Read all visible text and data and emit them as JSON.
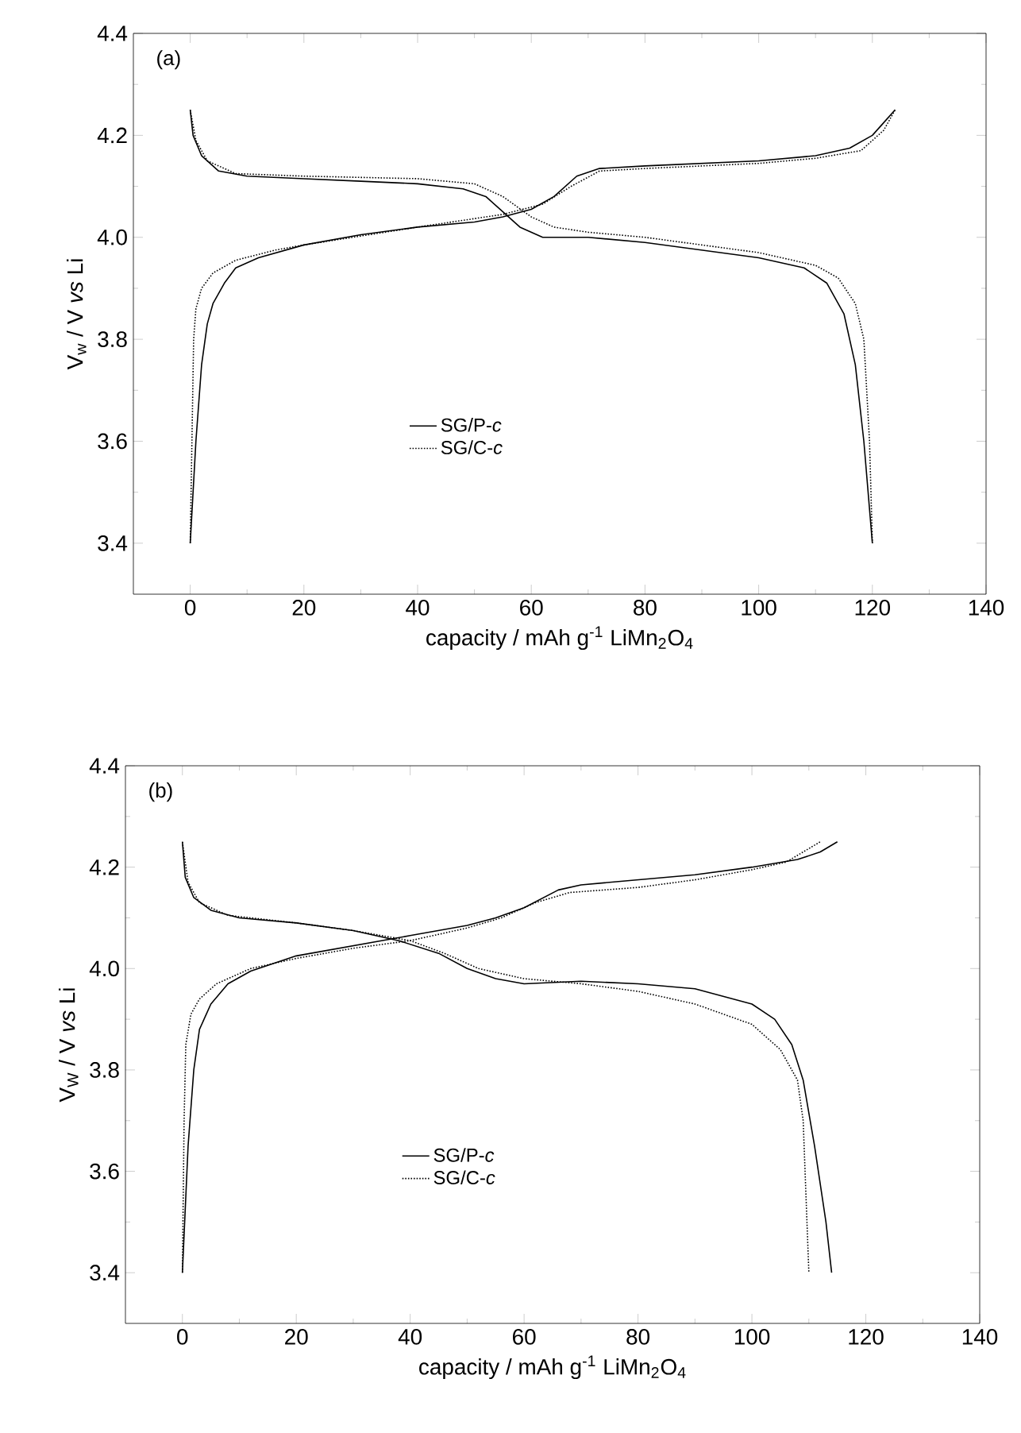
{
  "chart_data": [
    {
      "type": "line",
      "annotations": [
        "(a)"
      ],
      "xlabel": "capacity / mAh g$^{-1}$ LiMn$_{2}$O$_{4}$",
      "ylabel": "V$_{w}$ / V *vs* Li",
      "xlim": [
        -10,
        140
      ],
      "ylim": [
        3.3,
        4.4
      ],
      "xticks": [
        0,
        20,
        40,
        60,
        80,
        100,
        120,
        140
      ],
      "yticks": [
        3.4,
        3.6,
        3.8,
        {
          "value": 4.0,
          "label": "4.0"
        },
        4.2,
        4.4
      ],
      "legend": "center",
      "grid": false,
      "series": [
        {
          "name": "SG/P-*c*",
          "color": "#000000",
          "line_style": "solid",
          "x": [
            0,
            1,
            2,
            3,
            4,
            6,
            8,
            12,
            20,
            30,
            40,
            50,
            55,
            60,
            64,
            68,
            72,
            80,
            90,
            100,
            110,
            116,
            120,
            122,
            124
          ],
          "values": [
            3.4,
            3.6,
            3.75,
            3.83,
            3.87,
            3.91,
            3.94,
            3.96,
            3.985,
            4.005,
            4.02,
            4.03,
            4.04,
            4.055,
            4.08,
            4.12,
            4.135,
            4.14,
            4.145,
            4.15,
            4.16,
            4.175,
            4.2,
            4.225,
            4.25
          ]
        },
        {
          "name": "SG/C-*c*",
          "color": "#000000",
          "line_style": "dotted",
          "x": [
            0,
            0.3,
            0.6,
            1,
            2,
            4,
            8,
            15,
            20,
            40,
            55,
            62,
            67,
            72,
            80,
            100,
            110,
            118,
            122,
            124
          ],
          "values": [
            3.4,
            3.6,
            3.8,
            3.86,
            3.9,
            3.93,
            3.955,
            3.975,
            3.985,
            4.02,
            4.045,
            4.065,
            4.1,
            4.13,
            4.135,
            4.145,
            4.155,
            4.17,
            4.21,
            4.25
          ]
        },
        {
          "color": "#000000",
          "line_style": "solid",
          "x": [
            0,
            0.5,
            2,
            5,
            10,
            20,
            30,
            40,
            48,
            52,
            55,
            58,
            62,
            70,
            80,
            90,
            100,
            108,
            112,
            115,
            117,
            118.5,
            120
          ],
          "values": [
            4.25,
            4.2,
            4.16,
            4.13,
            4.12,
            4.115,
            4.11,
            4.105,
            4.095,
            4.08,
            4.05,
            4.02,
            4.0,
            4.0,
            3.99,
            3.975,
            3.96,
            3.94,
            3.91,
            3.85,
            3.75,
            3.6,
            3.4
          ]
        },
        {
          "color": "#000000",
          "line_style": "dotted",
          "x": [
            0,
            1,
            3,
            8,
            20,
            40,
            50,
            55,
            60,
            64,
            70,
            80,
            90,
            100,
            110,
            114,
            117,
            118.5,
            119.5,
            120
          ],
          "values": [
            4.25,
            4.19,
            4.15,
            4.125,
            4.12,
            4.115,
            4.105,
            4.08,
            4.04,
            4.02,
            4.01,
            4.0,
            3.985,
            3.97,
            3.945,
            3.92,
            3.87,
            3.8,
            3.6,
            3.4
          ]
        }
      ]
    },
    {
      "type": "line",
      "annotations": [
        "(b)"
      ],
      "xlabel": "capacity / mAh g$^{-1}$ LiMn$_{2}$O$_{4}$",
      "ylabel": "V$_{W}$ / V *vs* Li",
      "xlim": [
        -10,
        140
      ],
      "ylim": [
        3.3,
        4.4
      ],
      "xticks": [
        0,
        20,
        40,
        60,
        80,
        100,
        120,
        140
      ],
      "yticks": [
        3.4,
        3.6,
        3.8,
        {
          "value": 4.0,
          "label": "4.0"
        },
        4.2,
        4.4
      ],
      "legend": "center",
      "grid": false,
      "series": [
        {
          "name": "SG/P-*c*",
          "color": "#000000",
          "line_style": "solid",
          "x": [
            0,
            1,
            2,
            3,
            5,
            8,
            12,
            20,
            30,
            40,
            50,
            55,
            60,
            66,
            70,
            80,
            90,
            100,
            108,
            112,
            115
          ],
          "values": [
            3.4,
            3.65,
            3.8,
            3.88,
            3.93,
            3.97,
            3.995,
            4.025,
            4.045,
            4.065,
            4.085,
            4.1,
            4.12,
            4.155,
            4.165,
            4.175,
            4.185,
            4.2,
            4.215,
            4.23,
            4.25
          ]
        },
        {
          "name": "SG/C-*c*",
          "color": "#000000",
          "line_style": "dotted",
          "x": [
            0,
            0.3,
            0.6,
            1.5,
            3,
            6,
            12,
            20,
            30,
            40,
            50,
            56,
            62,
            68,
            80,
            90,
            100,
            106,
            112
          ],
          "values": [
            3.4,
            3.7,
            3.85,
            3.91,
            3.94,
            3.97,
            4.0,
            4.02,
            4.04,
            4.055,
            4.08,
            4.1,
            4.13,
            4.15,
            4.16,
            4.175,
            4.195,
            4.21,
            4.25
          ]
        },
        {
          "color": "#000000",
          "line_style": "solid",
          "x": [
            0,
            0.5,
            2,
            5,
            10,
            20,
            30,
            38,
            45,
            50,
            55,
            60,
            70,
            80,
            90,
            100,
            104,
            107,
            109,
            111,
            113,
            114
          ],
          "values": [
            4.25,
            4.18,
            4.14,
            4.115,
            4.1,
            4.09,
            4.075,
            4.055,
            4.03,
            4.0,
            3.98,
            3.97,
            3.975,
            3.97,
            3.96,
            3.93,
            3.9,
            3.85,
            3.78,
            3.65,
            3.5,
            3.4
          ]
        },
        {
          "color": "#000000",
          "line_style": "dotted",
          "x": [
            0,
            1,
            3,
            8,
            20,
            30,
            40,
            46,
            52,
            60,
            70,
            80,
            90,
            100,
            105,
            108,
            109,
            110
          ],
          "values": [
            4.25,
            4.17,
            4.13,
            4.105,
            4.09,
            4.075,
            4.055,
            4.03,
            4.0,
            3.98,
            3.97,
            3.955,
            3.93,
            3.89,
            3.84,
            3.78,
            3.7,
            3.4
          ]
        }
      ]
    }
  ]
}
